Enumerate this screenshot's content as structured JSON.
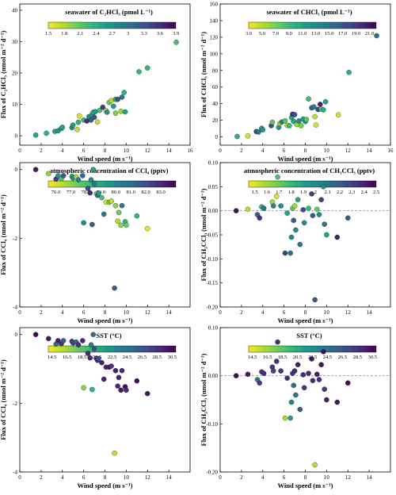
{
  "chart_data": [
    {
      "type": "scatter",
      "xlabel": "Wind speed (m s⁻¹)",
      "ylabel": "Flux of C₂HCl₃ (nmol m⁻² d⁻¹)",
      "xlim": [
        0,
        16
      ],
      "ylim": [
        -3,
        42
      ],
      "xticks": [
        0,
        2,
        4,
        6,
        8,
        10,
        12,
        14,
        16
      ],
      "yticks": [
        0,
        10,
        20,
        30,
        40
      ],
      "grid": false,
      "colorbar": {
        "title": "seawater of C₂HCl₃ (pmol L⁻¹)",
        "ticks": [
          "1.5",
          "1.8",
          "2.1",
          "2.4",
          "2.7",
          "3",
          "3.3",
          "3.6",
          "3.9"
        ],
        "min": 1.5,
        "max": 3.9
      },
      "points": [
        [
          1.5,
          0.2,
          2.5
        ],
        [
          2.5,
          0.8,
          2.4
        ],
        [
          3.3,
          1.4,
          2.5
        ],
        [
          3.6,
          1.6,
          2.7
        ],
        [
          3.9,
          2.3,
          2.6
        ],
        [
          4.0,
          2.7,
          2.5
        ],
        [
          4.9,
          2.6,
          2.7
        ],
        [
          5.0,
          3.4,
          2.6
        ],
        [
          5.4,
          2.0,
          1.7
        ],
        [
          5.5,
          4.3,
          2.4
        ],
        [
          5.6,
          6.3,
          1.6
        ],
        [
          6.0,
          5.0,
          2.3
        ],
        [
          6.3,
          4.7,
          3.6
        ],
        [
          6.5,
          6.1,
          2.7
        ],
        [
          6.7,
          5.0,
          3.2
        ],
        [
          6.8,
          6.8,
          2.5
        ],
        [
          6.9,
          7.5,
          2.4
        ],
        [
          7.0,
          5.9,
          3.3
        ],
        [
          7.1,
          7.7,
          2.6
        ],
        [
          7.3,
          4.4,
          1.7
        ],
        [
          7.5,
          8.1,
          2.2
        ],
        [
          7.8,
          9.1,
          3.5
        ],
        [
          8.1,
          8.0,
          1.7
        ],
        [
          8.2,
          7.5,
          2.7
        ],
        [
          8.4,
          10.6,
          2.1
        ],
        [
          8.6,
          11.2,
          1.8
        ],
        [
          8.8,
          9.4,
          2.6
        ],
        [
          9.0,
          7.2,
          2.0
        ],
        [
          9.0,
          11.6,
          2.4
        ],
        [
          9.2,
          11.6,
          3.3
        ],
        [
          9.5,
          7.8,
          1.9
        ],
        [
          9.6,
          12.3,
          2.9
        ],
        [
          9.8,
          13.8,
          2.4
        ],
        [
          9.9,
          7.6,
          2.5
        ],
        [
          11.2,
          20.4,
          2.3
        ],
        [
          12.0,
          21.6,
          2.3
        ],
        [
          14.7,
          29.8,
          2.2
        ]
      ]
    },
    {
      "type": "scatter",
      "xlabel": "Wind speed (m s⁻¹)",
      "ylabel": "Flux of CHCl₃ (nmol m⁻² d⁻¹)",
      "xlim": [
        0,
        16
      ],
      "ylim": [
        -10,
        160
      ],
      "xticks": [
        0,
        2,
        4,
        6,
        8,
        10,
        12,
        14,
        16
      ],
      "yticks": [
        0,
        20,
        40,
        60,
        80,
        100,
        120,
        140,
        160
      ],
      "grid": false,
      "colorbar": {
        "title": "seawater of CHCl₃ (pmol L⁻¹)",
        "ticks": [
          "3.0",
          "5.0",
          "7.0",
          "9.0",
          "11.0",
          "13.0",
          "15.0",
          "17.0",
          "19.0",
          "21.0"
        ],
        "min": 3.0,
        "max": 22.0
      },
      "points": [
        [
          1.6,
          0.5,
          10
        ],
        [
          2.6,
          1.2,
          4
        ],
        [
          3.4,
          6.4,
          18
        ],
        [
          3.6,
          5.8,
          15
        ],
        [
          3.9,
          10.3,
          11
        ],
        [
          4.0,
          8.5,
          12
        ],
        [
          4.8,
          13.5,
          18
        ],
        [
          4.9,
          17.6,
          8
        ],
        [
          5.5,
          11.4,
          12
        ],
        [
          5.6,
          16.0,
          6
        ],
        [
          5.8,
          18.0,
          14
        ],
        [
          6.1,
          19.3,
          8
        ],
        [
          6.3,
          13.8,
          5
        ],
        [
          6.5,
          13.4,
          9
        ],
        [
          6.7,
          23.2,
          10
        ],
        [
          6.8,
          27.3,
          19
        ],
        [
          6.9,
          18.7,
          11
        ],
        [
          7.0,
          26.8,
          17
        ],
        [
          7.2,
          14.8,
          6
        ],
        [
          7.4,
          19.1,
          13
        ],
        [
          7.6,
          13.4,
          7
        ],
        [
          7.8,
          21.4,
          11
        ],
        [
          8.0,
          18.5,
          12
        ],
        [
          8.1,
          21.0,
          8
        ],
        [
          8.3,
          45.7,
          9
        ],
        [
          8.6,
          35.0,
          16
        ],
        [
          8.8,
          36.1,
          14
        ],
        [
          8.9,
          24.3,
          5
        ],
        [
          9.0,
          14.3,
          4
        ],
        [
          9.2,
          33.0,
          18
        ],
        [
          9.4,
          39.2,
          20
        ],
        [
          9.5,
          33.5,
          8
        ],
        [
          9.7,
          32.5,
          10
        ],
        [
          9.9,
          42.2,
          11
        ],
        [
          11.1,
          26.5,
          4
        ],
        [
          12.1,
          77.6,
          10
        ],
        [
          14.7,
          121.8,
          15
        ]
      ]
    },
    {
      "type": "scatter",
      "xlabel": "Wind speed (m s⁻¹)",
      "ylabel": "Flux of CCl₄ (nmol m⁻² d⁻¹)",
      "xlim": [
        0,
        16
      ],
      "ylim": [
        -4,
        0.2
      ],
      "xticks": [
        0,
        2,
        4,
        6,
        8,
        10,
        12,
        14
      ],
      "yticks": [
        -4,
        -2,
        0
      ],
      "grid": false,
      "colorbar": {
        "title": "atmospheric concentration of CCl₄ (pptv)",
        "ticks": [
          "76.0",
          "77.0",
          "78.0",
          "79.0",
          "80.0",
          "81.0",
          "82.0",
          "83.0"
        ],
        "min": 75.5,
        "max": 84.0
      },
      "points": [
        [
          1.5,
          0.0,
          83.5
        ],
        [
          2.7,
          -0.12,
          77.0
        ],
        [
          3.4,
          -0.28,
          82.5
        ],
        [
          3.6,
          -0.18,
          79.5
        ],
        [
          3.9,
          -0.27,
          78.0
        ],
        [
          4.1,
          -0.18,
          81.5
        ],
        [
          4.9,
          -0.2,
          79.0
        ],
        [
          5.0,
          -0.25,
          80.0
        ],
        [
          5.3,
          -0.22,
          76.5
        ],
        [
          5.5,
          -0.3,
          80.5
        ],
        [
          5.9,
          -0.18,
          81.0
        ],
        [
          6.0,
          -1.55,
          80.0
        ],
        [
          6.4,
          -0.55,
          82.0
        ],
        [
          6.6,
          -0.68,
          83.0
        ],
        [
          6.7,
          -0.3,
          80.0
        ],
        [
          6.8,
          -1.6,
          81.5
        ],
        [
          6.9,
          0.0,
          79.0
        ],
        [
          7.0,
          -0.42,
          80.5
        ],
        [
          7.2,
          -0.7,
          77.0
        ],
        [
          7.3,
          -0.75,
          81.0
        ],
        [
          7.4,
          -0.7,
          79.5
        ],
        [
          7.7,
          -0.82,
          78.0
        ],
        [
          7.9,
          -1.3,
          80.5
        ],
        [
          8.1,
          -0.95,
          76.0
        ],
        [
          8.4,
          -0.95,
          77.5
        ],
        [
          8.6,
          -0.92,
          76.5
        ],
        [
          8.9,
          -3.45,
          81.5
        ],
        [
          9.0,
          -1.05,
          77.0
        ],
        [
          9.2,
          -1.5,
          76.5
        ],
        [
          9.3,
          -1.25,
          77.5
        ],
        [
          9.5,
          -1.62,
          77.0
        ],
        [
          9.6,
          -1.05,
          80.5
        ],
        [
          9.9,
          -1.52,
          78.5
        ],
        [
          10.0,
          -1.62,
          77.5
        ],
        [
          11.0,
          -1.35,
          78.5
        ],
        [
          12.0,
          -1.72,
          75.8
        ]
      ]
    },
    {
      "type": "scatter",
      "xlabel": "Wind speed (m s⁻¹)",
      "ylabel": "Flux of CH₃CCl₃ (nmol m⁻² d⁻¹)",
      "xlim": [
        0,
        16
      ],
      "ylim": [
        -0.2,
        0.1
      ],
      "xticks": [
        0,
        2,
        4,
        6,
        8,
        10,
        12,
        14
      ],
      "yticks": [
        -0.2,
        -0.15,
        -0.1,
        -0.05,
        0.0,
        0.05,
        0.1
      ],
      "grid": false,
      "reference_line": 0,
      "colorbar": {
        "title": "atmospheric concentration of CH₃CCl₃ (pptv)",
        "ticks": [
          "1.5",
          "1.6",
          "1.7",
          "1.8",
          "1.9",
          "2",
          "2.1",
          "2.2",
          "2.3",
          "2.4",
          "2.5"
        ],
        "min": 1.45,
        "max": 2.5
      },
      "points": [
        [
          1.5,
          0.0,
          2.45
        ],
        [
          2.6,
          0.003,
          1.55
        ],
        [
          3.5,
          -0.008,
          2.2
        ],
        [
          3.7,
          -0.015,
          2.35
        ],
        [
          3.9,
          0.008,
          1.8
        ],
        [
          4.1,
          0.005,
          2.1
        ],
        [
          4.9,
          0.018,
          1.6
        ],
        [
          5.0,
          0.01,
          2.0
        ],
        [
          5.3,
          0.03,
          1.5
        ],
        [
          5.4,
          0.07,
          1.75
        ],
        [
          5.7,
          0.01,
          2.0
        ],
        [
          6.1,
          -0.088,
          2.3
        ],
        [
          6.3,
          -0.005,
          1.9
        ],
        [
          6.6,
          -0.088,
          2.1
        ],
        [
          6.7,
          -0.055,
          2.0
        ],
        [
          6.8,
          0.005,
          1.7
        ],
        [
          6.9,
          -0.02,
          2.2
        ],
        [
          7.0,
          0.01,
          1.6
        ],
        [
          7.1,
          -0.04,
          2.0
        ],
        [
          7.3,
          0.023,
          1.9
        ],
        [
          7.5,
          -0.07,
          2.1
        ],
        [
          7.8,
          0.002,
          2.25
        ],
        [
          7.9,
          -0.025,
          2.0
        ],
        [
          8.3,
          0.005,
          1.8
        ],
        [
          8.6,
          0.035,
          2.3
        ],
        [
          8.7,
          -0.01,
          2.2
        ],
        [
          8.9,
          -0.185,
          2.2
        ],
        [
          9.1,
          0.003,
          1.7
        ],
        [
          9.3,
          -0.008,
          2.0
        ],
        [
          9.5,
          0.023,
          2.3
        ],
        [
          9.7,
          0.05,
          2.0
        ],
        [
          9.8,
          -0.028,
          2.1
        ],
        [
          10.0,
          -0.05,
          1.9
        ],
        [
          11.0,
          -0.055,
          2.4
        ],
        [
          12.0,
          -0.015,
          2.2
        ]
      ]
    },
    {
      "type": "scatter",
      "xlabel": "Wind speed (m s⁻¹)",
      "ylabel": "Flux of CCl₄ (nmol m⁻² d⁻¹)",
      "xlim": [
        0,
        16
      ],
      "ylim": [
        -4,
        0.2
      ],
      "xticks": [
        0,
        2,
        4,
        6,
        8,
        10,
        12,
        14
      ],
      "yticks": [
        -4,
        -2,
        0
      ],
      "grid": false,
      "colorbar": {
        "title": "SST (°C)",
        "ticks": [
          "14.5",
          "16.5",
          "18.5",
          "20.5",
          "22.5",
          "24.5",
          "26.5",
          "28.5",
          "30.5"
        ],
        "min": 14.0,
        "max": 31.0
      },
      "points": [
        [
          1.5,
          0.0,
          30.5
        ],
        [
          2.7,
          -0.12,
          30.0
        ],
        [
          3.4,
          -0.28,
          25.0
        ],
        [
          3.6,
          -0.18,
          29.5
        ],
        [
          3.9,
          -0.27,
          28.5
        ],
        [
          4.1,
          -0.18,
          26.0
        ],
        [
          4.9,
          -0.2,
          28.0
        ],
        [
          5.0,
          -0.25,
          27.5
        ],
        [
          5.3,
          -0.22,
          25.5
        ],
        [
          5.5,
          -0.3,
          28.5
        ],
        [
          5.9,
          -0.18,
          29.0
        ],
        [
          6.0,
          -1.55,
          17.0
        ],
        [
          6.4,
          -0.55,
          29.0
        ],
        [
          6.6,
          -0.68,
          29.0
        ],
        [
          6.7,
          -0.3,
          24.0
        ],
        [
          6.8,
          -1.6,
          20.0
        ],
        [
          6.9,
          0.0,
          25.0
        ],
        [
          7.0,
          -0.42,
          26.5
        ],
        [
          7.2,
          -0.7,
          28.0
        ],
        [
          7.3,
          -0.75,
          29.0
        ],
        [
          7.4,
          -0.7,
          27.0
        ],
        [
          7.7,
          -0.82,
          29.5
        ],
        [
          7.9,
          -1.3,
          29.5
        ],
        [
          8.1,
          -0.95,
          29.0
        ],
        [
          8.4,
          -0.95,
          30.0
        ],
        [
          8.6,
          -0.92,
          28.5
        ],
        [
          8.9,
          -3.45,
          15.5
        ],
        [
          9.0,
          -1.05,
          29.5
        ],
        [
          9.2,
          -1.5,
          29.0
        ],
        [
          9.3,
          -1.25,
          29.5
        ],
        [
          9.5,
          -1.62,
          30.0
        ],
        [
          9.6,
          -1.05,
          29.0
        ],
        [
          9.9,
          -1.52,
          30.5
        ],
        [
          10.0,
          -1.62,
          29.0
        ],
        [
          11.0,
          -1.35,
          30.5
        ],
        [
          12.0,
          -1.72,
          30.0
        ]
      ]
    },
    {
      "type": "scatter",
      "xlabel": "Wind speed (m s⁻¹)",
      "ylabel": "Flux of CH₃CCl₃ (nmol m⁻² d⁻¹)",
      "xlim": [
        0,
        16
      ],
      "ylim": [
        -0.2,
        0.1
      ],
      "xticks": [
        0,
        2,
        4,
        6,
        8,
        10,
        12,
        14
      ],
      "yticks": [
        -0.2,
        -0.1,
        0.0,
        0.1
      ],
      "grid": false,
      "reference_line": 0,
      "colorbar": {
        "title": "SST (°C)",
        "ticks": [
          "14.5",
          "16.5",
          "18.5",
          "20.5",
          "22.5",
          "24.5",
          "26.5",
          "28.5",
          "30.5"
        ],
        "min": 14.0,
        "max": 31.0
      },
      "points": [
        [
          1.5,
          0.0,
          30.5
        ],
        [
          2.6,
          0.003,
          30.0
        ],
        [
          3.5,
          -0.008,
          24.0
        ],
        [
          3.7,
          -0.015,
          28.0
        ],
        [
          3.9,
          0.008,
          28.5
        ],
        [
          4.1,
          0.005,
          29.0
        ],
        [
          4.9,
          0.018,
          28.0
        ],
        [
          5.0,
          0.01,
          27.5
        ],
        [
          5.3,
          0.03,
          28.5
        ],
        [
          5.4,
          0.07,
          29.0
        ],
        [
          5.7,
          0.01,
          28.5
        ],
        [
          6.1,
          -0.088,
          16.0
        ],
        [
          6.3,
          -0.005,
          29.0
        ],
        [
          6.6,
          -0.088,
          21.0
        ],
        [
          6.7,
          -0.055,
          23.0
        ],
        [
          6.8,
          0.005,
          28.0
        ],
        [
          6.9,
          -0.02,
          25.0
        ],
        [
          7.0,
          0.01,
          29.0
        ],
        [
          7.1,
          -0.04,
          24.5
        ],
        [
          7.3,
          0.023,
          29.5
        ],
        [
          7.5,
          -0.07,
          26.0
        ],
        [
          7.8,
          0.002,
          29.0
        ],
        [
          7.9,
          -0.025,
          28.5
        ],
        [
          8.3,
          0.005,
          29.0
        ],
        [
          8.6,
          0.035,
          30.0
        ],
        [
          8.7,
          -0.01,
          29.0
        ],
        [
          8.9,
          -0.185,
          16.0
        ],
        [
          9.1,
          0.003,
          29.5
        ],
        [
          9.3,
          -0.008,
          29.0
        ],
        [
          9.5,
          0.023,
          30.0
        ],
        [
          9.7,
          0.05,
          30.5
        ],
        [
          9.8,
          -0.028,
          28.0
        ],
        [
          10.0,
          -0.05,
          29.5
        ],
        [
          11.0,
          -0.055,
          30.0
        ],
        [
          12.0,
          -0.015,
          30.5
        ]
      ]
    }
  ]
}
